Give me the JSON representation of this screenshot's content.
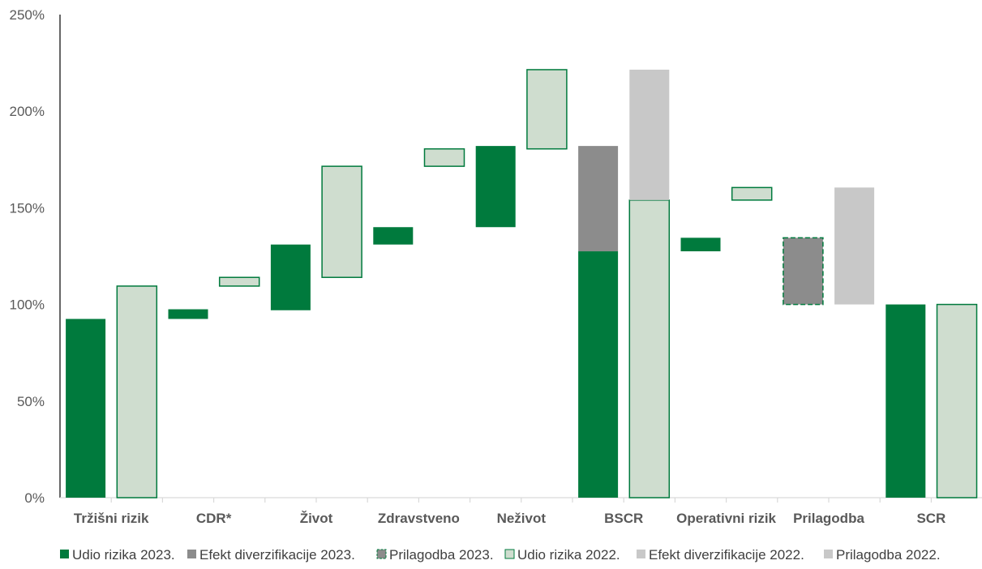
{
  "chart_data": {
    "type": "waterfall",
    "title": "",
    "xlabel": "",
    "ylabel": "",
    "ylim": [
      0,
      250
    ],
    "y_ticks": [
      0,
      50,
      100,
      150,
      200,
      250
    ],
    "y_tick_labels": [
      "0%",
      "50%",
      "100%",
      "150%",
      "200%",
      "250%"
    ],
    "grid": false,
    "legend_position": "bottom",
    "categories": [
      "Tržišni rizik",
      "CDR*",
      "Život",
      "Zdravstveno",
      "Neživot",
      "BSCR",
      "Operativni rizik",
      "Prilagodba",
      "SCR"
    ],
    "series": [
      {
        "name": "Udio rizika 2023.",
        "color": "#007A3D",
        "bars": [
          {
            "category": "Tržišni rizik",
            "from": 0,
            "to": 92.5
          },
          {
            "category": "CDR*",
            "from": 92.5,
            "to": 97.5
          },
          {
            "category": "Život",
            "from": 97,
            "to": 131
          },
          {
            "category": "Zdravstveno",
            "from": 131,
            "to": 140
          },
          {
            "category": "Neživot",
            "from": 140,
            "to": 182
          },
          {
            "category": "BSCR",
            "from": 0,
            "to": 127.5
          },
          {
            "category": "Operativni rizik",
            "from": 127.5,
            "to": 134.5
          },
          {
            "category": "SCR",
            "from": 0,
            "to": 100
          }
        ]
      },
      {
        "name": "Efekt diverzifikacije 2023.",
        "color": "#8C8C8C",
        "bars": [
          {
            "category": "BSCR",
            "from": 127.5,
            "to": 182
          }
        ]
      },
      {
        "name": "Prilagodba 2023.",
        "color": "#8C8C8C",
        "border": "#007A3D",
        "bars": [
          {
            "category": "Prilagodba",
            "from": 100,
            "to": 134.5
          }
        ]
      },
      {
        "name": "Udio rizika 2022.",
        "color": "#CFDDCF",
        "border": "#007A3D",
        "bars": [
          {
            "category": "Tržišni rizik",
            "from": 0,
            "to": 109.5
          },
          {
            "category": "CDR*",
            "from": 109.5,
            "to": 114
          },
          {
            "category": "Život",
            "from": 114,
            "to": 171.5
          },
          {
            "category": "Zdravstveno",
            "from": 171.5,
            "to": 180.5
          },
          {
            "category": "Neživot",
            "from": 180.5,
            "to": 221.5
          },
          {
            "category": "BSCR",
            "from": 0,
            "to": 154
          },
          {
            "category": "Operativni rizik",
            "from": 154,
            "to": 160.5
          },
          {
            "category": "SCR",
            "from": 0,
            "to": 100
          }
        ]
      },
      {
        "name": "Efekt diverzifikacije 2022.",
        "color": "#C8C8C8",
        "bars": [
          {
            "category": "BSCR",
            "from": 154,
            "to": 221.5
          }
        ]
      },
      {
        "name": "Prilagodba 2022.",
        "color": "#C8C8C8",
        "bars": [
          {
            "category": "Prilagodba",
            "from": 100,
            "to": 160.5
          }
        ]
      }
    ]
  }
}
